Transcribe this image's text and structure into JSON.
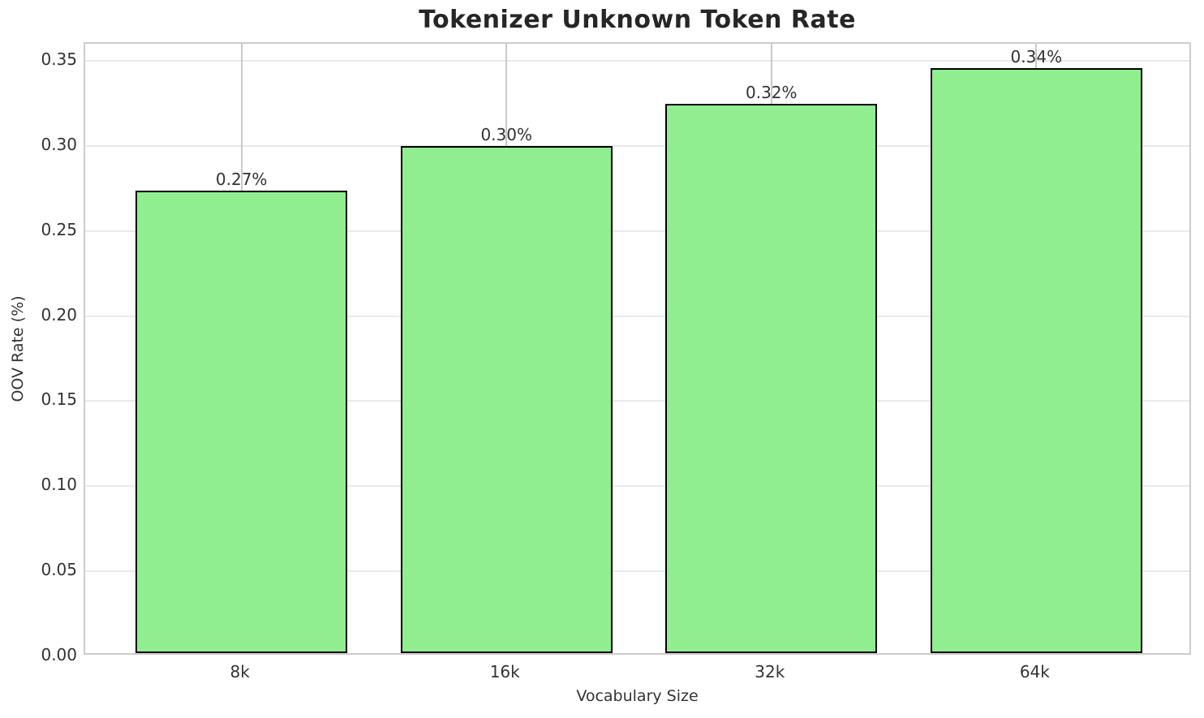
{
  "chart_data": {
    "type": "bar",
    "title": "Tokenizer Unknown Token Rate",
    "xlabel": "Vocabulary Size",
    "ylabel": "OOV Rate (%)",
    "categories": [
      "8k",
      "16k",
      "32k",
      "64k"
    ],
    "values": [
      0.272,
      0.298,
      0.323,
      0.344
    ],
    "bar_labels": [
      "0.27%",
      "0.30%",
      "0.32%",
      "0.34%"
    ],
    "ytick_labels": [
      "0.00",
      "0.05",
      "0.10",
      "0.15",
      "0.20",
      "0.25",
      "0.30",
      "0.35"
    ],
    "yticks": [
      0.0,
      0.05,
      0.1,
      0.15,
      0.2,
      0.25,
      0.3,
      0.35
    ],
    "ylim": [
      0,
      0.36
    ],
    "xlim": [
      -0.59,
      3.59
    ],
    "bar_width_units": 0.8,
    "grid": true,
    "legend_position": "none",
    "colors": {
      "bar_fill": "#90ee90",
      "bar_edge": "#000000",
      "spine": "#cccccc",
      "hgrid": "#e9e9e9",
      "vgrid": "#c9c9c9",
      "title_text": "#262626",
      "tick_text": "#333333",
      "background": "#ffffff"
    }
  }
}
